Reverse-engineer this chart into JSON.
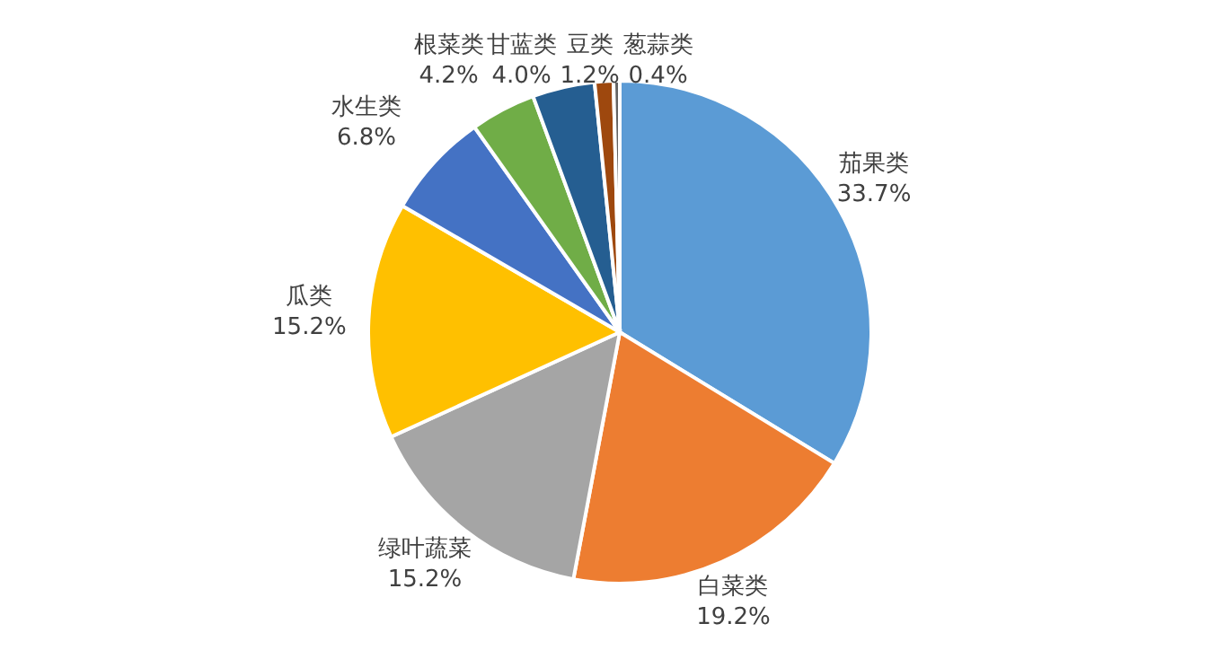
{
  "chart_data": {
    "type": "pie",
    "categories": [
      "茄果类",
      "白菜类",
      "绿叶蔬菜",
      "瓜类",
      "水生类",
      "根菜类",
      "甘蓝类",
      "豆类",
      "葱蒜类"
    ],
    "values": [
      33.7,
      19.2,
      15.2,
      15.2,
      6.8,
      4.2,
      4.0,
      1.2,
      0.4
    ],
    "value_labels": [
      "33.7%",
      "19.2%",
      "15.2%",
      "15.2%",
      "6.8%",
      "4.2%",
      "4.0%",
      "1.2%",
      "0.4%"
    ],
    "colors": [
      "#5b9bd5",
      "#ed7d31",
      "#a5a5a5",
      "#ffc000",
      "#4472c4",
      "#70ad47",
      "#255e91",
      "#9e480e",
      "#636363"
    ],
    "legend": false
  }
}
